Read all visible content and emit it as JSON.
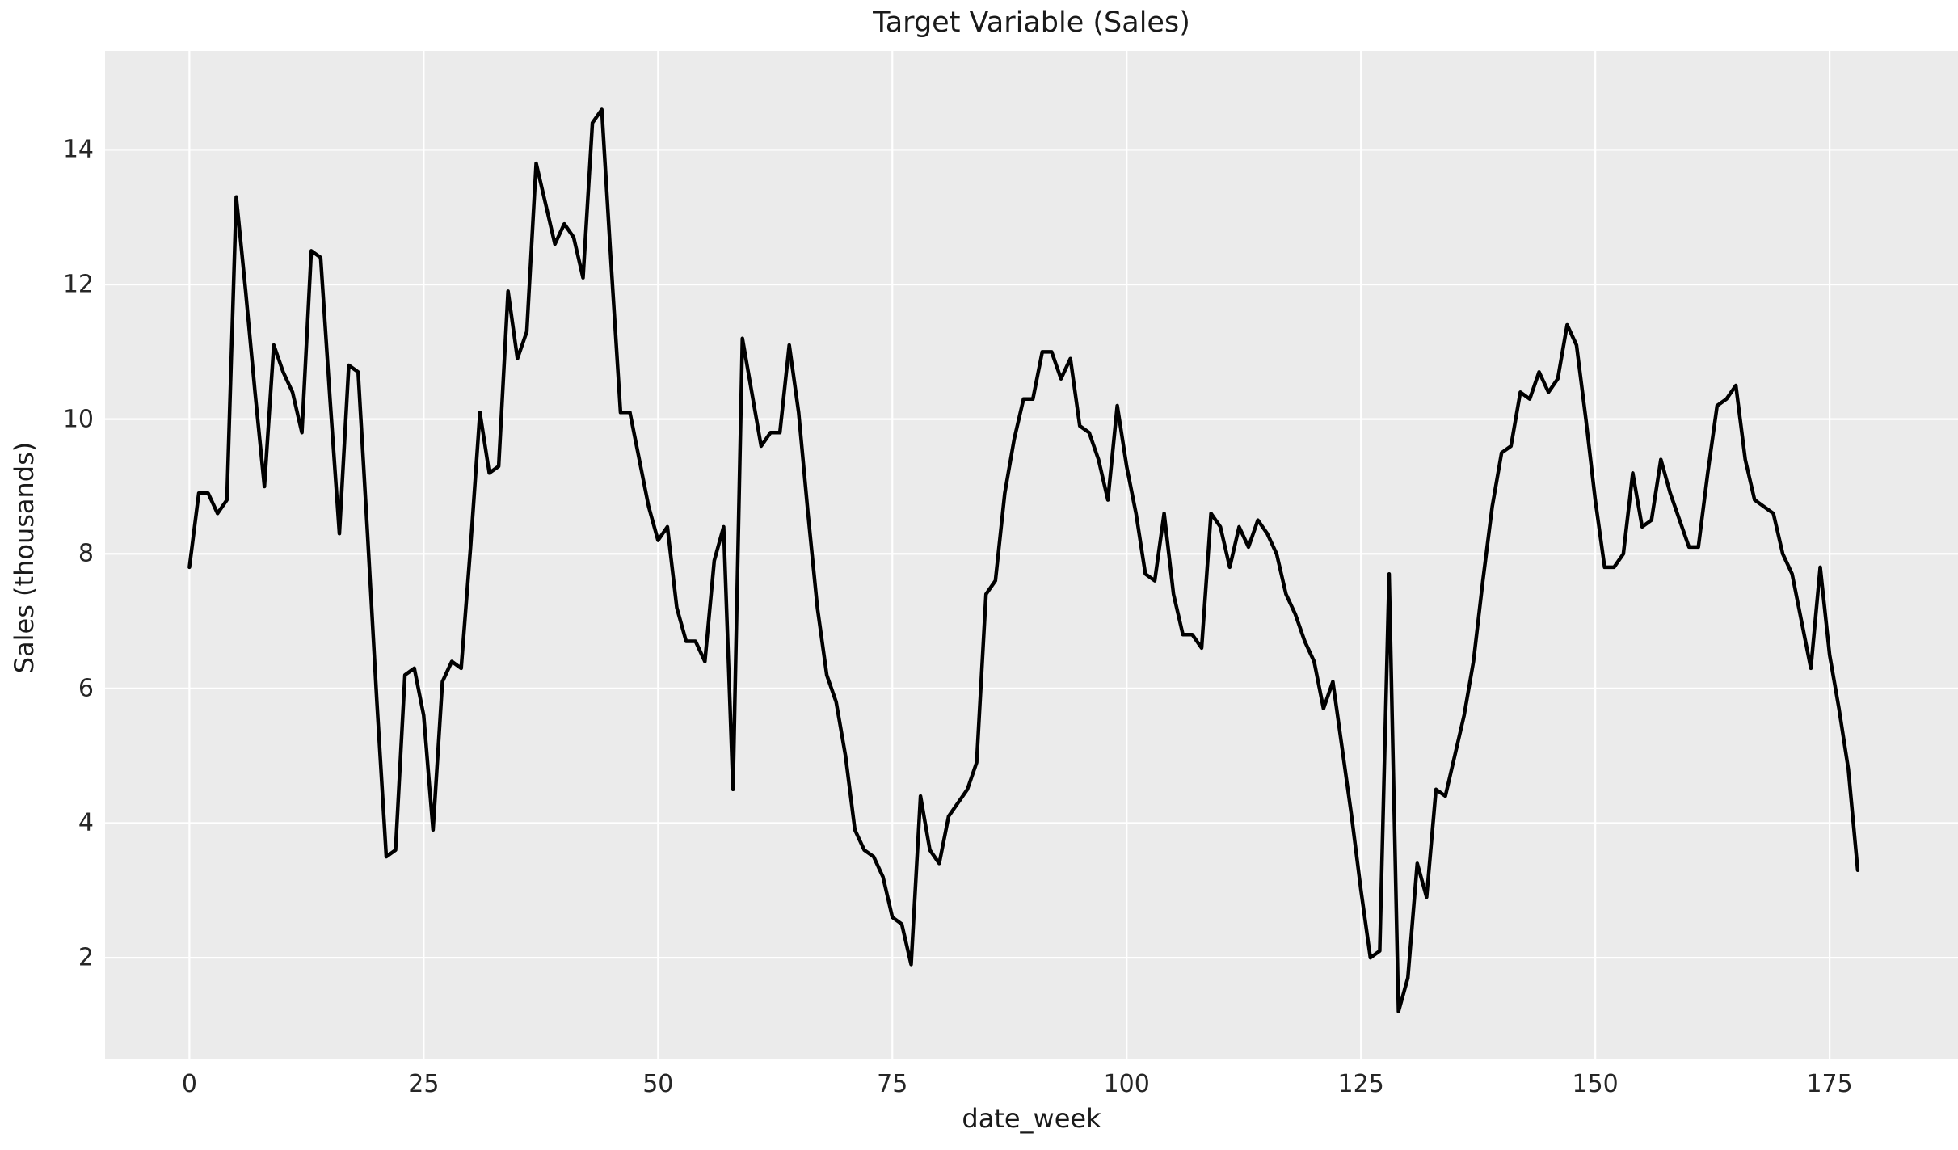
{
  "title": "Target Variable (Sales)",
  "chart_data": {
    "type": "line",
    "title": "Target Variable (Sales)",
    "xlabel": "date_week",
    "ylabel": "Sales (thousands)",
    "legend": null,
    "grid": true,
    "plot_background": "#ebebeb",
    "gridline_color": "#ffffff",
    "line_color": "#000000",
    "line_width": 4.5,
    "text_color": "#262626",
    "x_ticks": [
      0,
      25,
      50,
      75,
      100,
      125,
      150,
      175
    ],
    "y_ticks": [
      2,
      4,
      6,
      8,
      10,
      12,
      14
    ],
    "xlim": [
      -9.0,
      188.7
    ],
    "ylim": [
      0.5,
      15.47
    ],
    "x_start": 0,
    "x_step": 1,
    "series_name": "Sales",
    "values": [
      7.8,
      8.9,
      8.9,
      8.6,
      8.8,
      13.3,
      11.9,
      10.4,
      9.0,
      11.1,
      10.7,
      10.4,
      9.8,
      12.5,
      12.4,
      10.3,
      8.3,
      10.8,
      10.7,
      8.3,
      5.8,
      3.5,
      3.6,
      6.2,
      6.3,
      5.6,
      3.9,
      6.1,
      6.4,
      6.3,
      8.1,
      10.1,
      9.2,
      9.3,
      11.9,
      10.9,
      11.3,
      13.8,
      13.2,
      12.6,
      12.9,
      12.7,
      12.1,
      14.4,
      14.6,
      12.3,
      10.1,
      10.1,
      9.4,
      8.7,
      8.2,
      8.4,
      7.2,
      6.7,
      6.7,
      6.4,
      7.9,
      8.4,
      4.5,
      11.2,
      10.4,
      9.6,
      9.8,
      9.8,
      11.1,
      10.1,
      8.6,
      7.2,
      6.2,
      5.8,
      5.0,
      3.9,
      3.6,
      3.5,
      3.2,
      2.6,
      2.5,
      1.9,
      4.4,
      3.6,
      3.4,
      4.1,
      4.3,
      4.5,
      4.9,
      7.4,
      7.6,
      8.9,
      9.7,
      10.3,
      10.3,
      11.0,
      11.0,
      10.6,
      10.9,
      9.9,
      9.8,
      9.4,
      8.8,
      10.2,
      9.3,
      8.6,
      7.7,
      7.6,
      8.6,
      7.4,
      6.8,
      6.8,
      6.6,
      8.6,
      8.4,
      7.8,
      8.4,
      8.1,
      8.5,
      8.3,
      8.0,
      7.4,
      7.1,
      6.7,
      6.4,
      5.7,
      6.1,
      5.1,
      4.1,
      3.0,
      2.0,
      2.1,
      7.7,
      1.2,
      1.7,
      3.4,
      2.9,
      4.5,
      4.4,
      5.0,
      5.6,
      6.4,
      7.6,
      8.7,
      9.5,
      9.6,
      10.4,
      10.3,
      10.7,
      10.4,
      10.6,
      11.4,
      11.1,
      10.0,
      8.8,
      7.8,
      7.8,
      8.0,
      9.2,
      8.4,
      8.5,
      9.4,
      8.9,
      8.5,
      8.1,
      8.1,
      9.2,
      10.2,
      10.3,
      10.5,
      9.4,
      8.8,
      8.7,
      8.6,
      8.0,
      7.7,
      7.0,
      6.3,
      7.8,
      6.5,
      5.7,
      4.8,
      3.3
    ]
  }
}
